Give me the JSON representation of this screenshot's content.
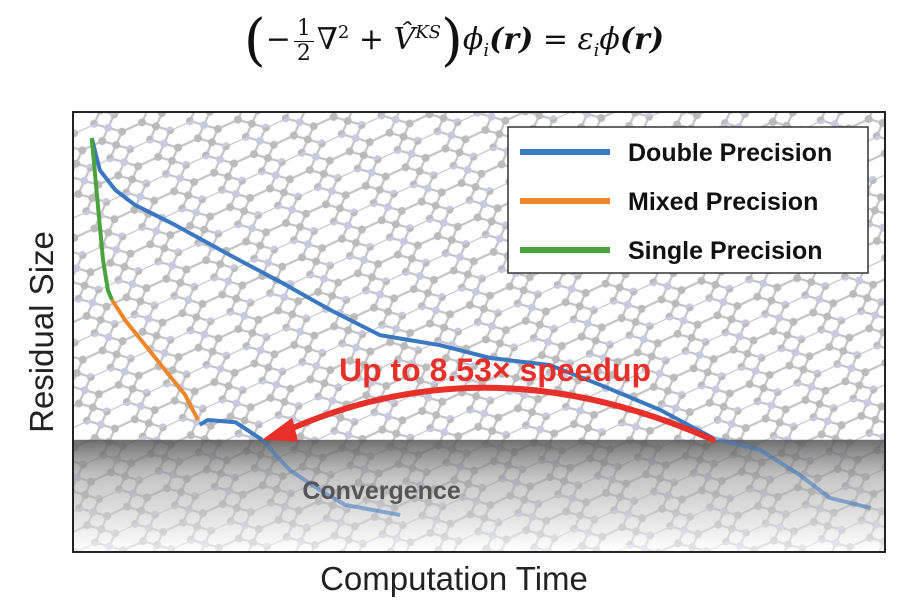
{
  "equation": {
    "minus": "−",
    "frac_num": "1",
    "frac_den": "2",
    "nabla": "∇",
    "nabla_power": "2",
    "plus": "+",
    "potential": "V̂",
    "potential_sup": "KS",
    "phi_i": "ϕ",
    "sub_i": "i",
    "arg_r": "(r)",
    "equals": "=",
    "eps": "ε",
    "eps_sub": "i",
    "phi": "ϕ",
    "arg_r2": "(r)"
  },
  "chart_data": {
    "type": "line",
    "xlabel": "Computation Time",
    "ylabel": "Residual Size",
    "xlim": [
      0,
      100
    ],
    "ylim": [
      0,
      100
    ],
    "grid": false,
    "legend_position": "top-right",
    "convergence_level": 25.5,
    "convergence_label": "Convergence",
    "annotation": "Up to 8.53× speedup",
    "colors": {
      "double": "#3a78c0",
      "mixed": "#f0862a",
      "single": "#4aa33c",
      "arrow": "#e8302a"
    },
    "series": [
      {
        "name": "Double Precision",
        "key": "double",
        "x": [
          2.3,
          3.3,
          5.2,
          7.6,
          12.6,
          19.3,
          25.5,
          31.7,
          37.8,
          45.2,
          51.4,
          58.7,
          64.9,
          72.3,
          78.8,
          84.6,
          89.5,
          93.2,
          98.2
        ],
        "y": [
          94.1,
          86.8,
          82.3,
          78.9,
          74.3,
          67.5,
          61.4,
          55.0,
          49.3,
          47.0,
          44.1,
          42.5,
          38.0,
          32.3,
          25.9,
          23.2,
          17.5,
          12.3,
          10.0
        ]
      },
      {
        "name": "Mixed Precision",
        "key": "mixed",
        "x": [
          4.8,
          6.4,
          8.9,
          11.3,
          13.8,
          15.4
        ],
        "y": [
          57.3,
          52.7,
          47.0,
          41.4,
          35.7,
          30.0
        ],
        "continuation_double_x": [
          15.6,
          16.6,
          20.0,
          23.3,
          26.7,
          30.4,
          33.5,
          40.3
        ],
        "continuation_double_y": [
          28.9,
          30.0,
          29.5,
          25.5,
          18.6,
          14.1,
          10.7,
          8.4
        ]
      },
      {
        "name": "Single Precision",
        "key": "single",
        "x": [
          2.3,
          3.0,
          3.7,
          4.3,
          4.8
        ],
        "y": [
          94.1,
          80.0,
          66.4,
          59.5,
          57.3
        ]
      }
    ],
    "speedup_arrow": {
      "from_x": 78.8,
      "to_x": 23.3,
      "at_y": 25.5,
      "factor": "8.53×"
    }
  }
}
